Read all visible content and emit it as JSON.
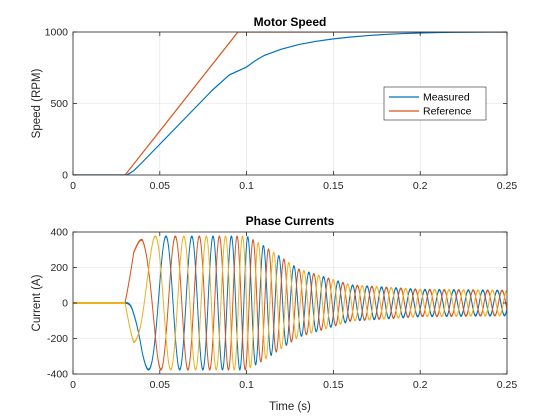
{
  "figure": {
    "background": "#ffffff",
    "axes_color": "#262626",
    "grid_color": "#dfdfdf"
  },
  "chart_data": [
    {
      "type": "line",
      "title": "Motor Speed",
      "xlabel": "",
      "ylabel": "Speed (RPM)",
      "xlim": [
        0,
        0.25
      ],
      "ylim": [
        0,
        1000
      ],
      "xticks": [
        0,
        0.05,
        0.1,
        0.15,
        0.2,
        0.25
      ],
      "xtick_labels": [
        "0",
        "0.05",
        "0.1",
        "0.15",
        "0.2",
        "0.25"
      ],
      "yticks": [
        0,
        500,
        1000
      ],
      "ytick_labels": [
        "0",
        "500",
        "1000"
      ],
      "grid": true,
      "legend_location": "east",
      "series": [
        {
          "name": "Measured",
          "color": "#0072bd",
          "x": [
            0,
            0.031,
            0.035,
            0.04,
            0.05,
            0.06,
            0.07,
            0.08,
            0.09,
            0.1,
            0.105,
            0.11,
            0.12,
            0.13,
            0.14,
            0.15,
            0.16,
            0.17,
            0.18,
            0.19,
            0.2,
            0.21,
            0.22,
            0.23,
            0.24,
            0.25
          ],
          "y": [
            0,
            0,
            30,
            90,
            215,
            340,
            465,
            590,
            700,
            755,
            800,
            835,
            880,
            912,
            935,
            952,
            965,
            975,
            983,
            989,
            993,
            996,
            998,
            999,
            1000,
            1000
          ]
        },
        {
          "name": "Reference",
          "color": "#d95319",
          "x": [
            0,
            0.03,
            0.095,
            0.25
          ],
          "y": [
            0,
            0,
            1000,
            1000
          ]
        }
      ]
    },
    {
      "type": "line",
      "title": "Phase Currents",
      "xlabel": "Time (s)",
      "ylabel": "Current (A)",
      "xlim": [
        0,
        0.25
      ],
      "ylim": [
        -400,
        400
      ],
      "xticks": [
        0,
        0.05,
        0.1,
        0.15,
        0.2,
        0.25
      ],
      "xtick_labels": [
        "0",
        "0.05",
        "0.1",
        "0.15",
        "0.2",
        "0.25"
      ],
      "yticks": [
        -400,
        -200,
        0,
        200,
        400
      ],
      "ytick_labels": [
        "-400",
        "-200",
        "0",
        "200",
        "400"
      ],
      "grid": true,
      "series": [
        {
          "color": "#0072bd",
          "phase_offset_deg": 0
        },
        {
          "color": "#d95319",
          "phase_offset_deg": -120
        },
        {
          "color": "#edb120",
          "phase_offset_deg": 120
        }
      ],
      "signal": {
        "start_time": 0.03,
        "amplitude_envelope": {
          "t": [
            0,
            0.03,
            0.035,
            0.04,
            0.1,
            0.11,
            0.13,
            0.16,
            0.2,
            0.25
          ],
          "a": [
            0,
            0,
            300,
            375,
            375,
            320,
            190,
            100,
            75,
            70
          ]
        },
        "frequency_envelope": {
          "t": [
            0,
            0.03,
            0.05,
            0.1,
            0.15,
            0.25
          ],
          "f": [
            0,
            0,
            55,
            110,
            120,
            120
          ]
        }
      }
    }
  ]
}
